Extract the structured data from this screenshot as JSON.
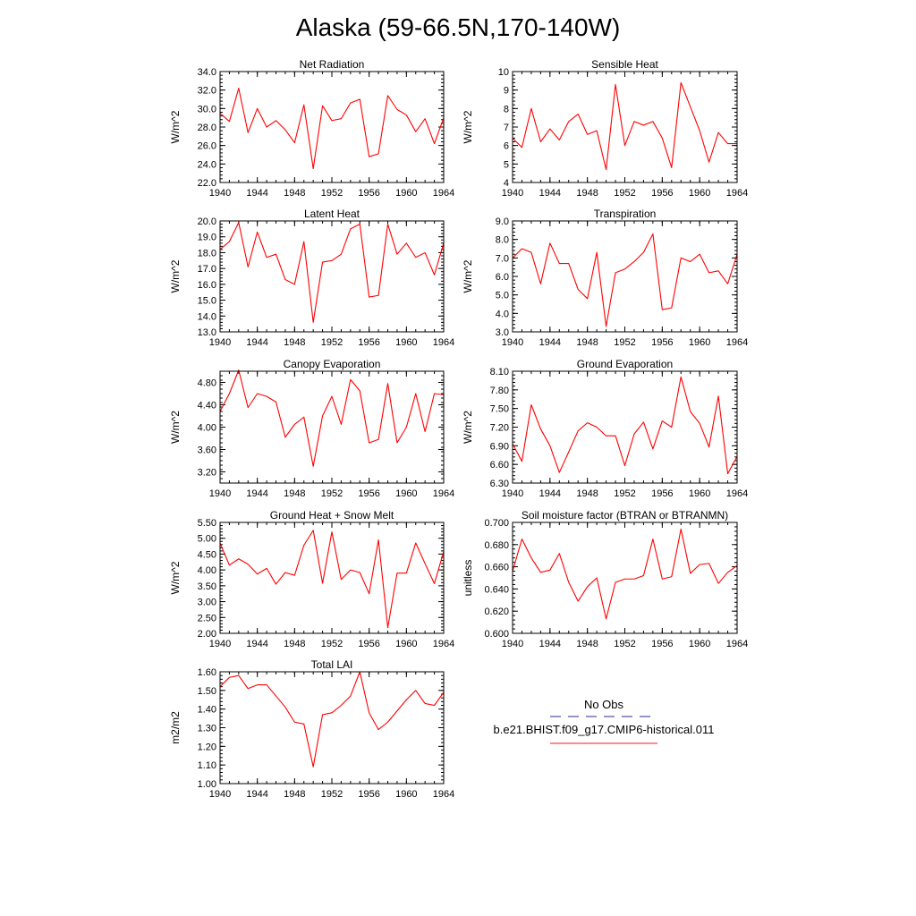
{
  "figure": {
    "title": "Alaska (59-66.5N,170-140W)"
  },
  "legend": {
    "entries": [
      {
        "label": "No Obs",
        "color": "#5555aa",
        "style": "dashed"
      },
      {
        "label": "b.e21.BHIST.f09_g17.CMIP6-historical.011",
        "color": "#ff4444",
        "style": "solid"
      }
    ]
  },
  "chart_data": [
    {
      "type": "line",
      "title": "Net Radiation",
      "ylabel": "W/m^2",
      "xlim": [
        1940,
        1964
      ],
      "ylim": [
        22,
        34
      ],
      "yticks": [
        22.0,
        24.0,
        26.0,
        28.0,
        30.0,
        32.0,
        34.0
      ],
      "ytick_decimals": 1,
      "xticks": [
        1940,
        1944,
        1948,
        1952,
        1956,
        1960,
        1964
      ],
      "x": [
        1940,
        1941,
        1942,
        1943,
        1944,
        1945,
        1946,
        1947,
        1948,
        1949,
        1950,
        1951,
        1952,
        1953,
        1954,
        1955,
        1956,
        1957,
        1958,
        1959,
        1960,
        1961,
        1962,
        1963,
        1964
      ],
      "series": [
        {
          "color": "#ff0000",
          "values": [
            29.5,
            28.6,
            32.2,
            27.4,
            30.0,
            28.0,
            28.7,
            27.7,
            26.3,
            30.4,
            23.5,
            30.3,
            28.7,
            28.9,
            30.6,
            31.0,
            24.8,
            25.1,
            31.4,
            29.9,
            29.3,
            27.5,
            28.9,
            26.2,
            29.0
          ]
        }
      ]
    },
    {
      "type": "line",
      "title": "Sensible Heat",
      "ylabel": "W/m^2",
      "xlim": [
        1940,
        1964
      ],
      "ylim": [
        4,
        10
      ],
      "yticks": [
        4,
        5,
        6,
        7,
        8,
        9,
        10
      ],
      "ytick_decimals": 0,
      "xticks": [
        1940,
        1944,
        1948,
        1952,
        1956,
        1960,
        1964
      ],
      "x": [
        1940,
        1941,
        1942,
        1943,
        1944,
        1945,
        1946,
        1947,
        1948,
        1949,
        1950,
        1951,
        1952,
        1953,
        1954,
        1955,
        1956,
        1957,
        1958,
        1959,
        1960,
        1961,
        1962,
        1963,
        1964
      ],
      "series": [
        {
          "color": "#ff0000",
          "values": [
            6.4,
            5.9,
            8.0,
            6.2,
            6.9,
            6.3,
            7.3,
            7.7,
            6.6,
            6.8,
            4.7,
            9.3,
            6.0,
            7.3,
            7.1,
            7.3,
            6.4,
            4.8,
            9.4,
            8.1,
            6.8,
            5.1,
            6.7,
            6.1,
            6.1
          ]
        }
      ]
    },
    {
      "type": "line",
      "title": "Latent Heat",
      "ylabel": "W/m^2",
      "xlim": [
        1940,
        1964
      ],
      "ylim": [
        13,
        20
      ],
      "yticks": [
        13.0,
        14.0,
        15.0,
        16.0,
        17.0,
        18.0,
        19.0,
        20.0
      ],
      "ytick_decimals": 1,
      "xticks": [
        1940,
        1944,
        1948,
        1952,
        1956,
        1960,
        1964
      ],
      "x": [
        1940,
        1941,
        1942,
        1943,
        1944,
        1945,
        1946,
        1947,
        1948,
        1949,
        1950,
        1951,
        1952,
        1953,
        1954,
        1955,
        1956,
        1957,
        1958,
        1959,
        1960,
        1961,
        1962,
        1963,
        1964
      ],
      "series": [
        {
          "color": "#ff0000",
          "values": [
            18.2,
            18.7,
            19.9,
            17.1,
            19.3,
            17.7,
            17.9,
            16.3,
            16.0,
            18.7,
            13.6,
            17.4,
            17.5,
            17.9,
            19.5,
            19.8,
            15.2,
            15.3,
            19.8,
            17.9,
            18.6,
            17.7,
            18.0,
            16.6,
            18.6
          ]
        }
      ]
    },
    {
      "type": "line",
      "title": "Transpiration",
      "ylabel": "W/m^2",
      "xlim": [
        1940,
        1964
      ],
      "ylim": [
        3,
        9
      ],
      "yticks": [
        3.0,
        4.0,
        5.0,
        6.0,
        7.0,
        8.0,
        9.0
      ],
      "ytick_decimals": 1,
      "xticks": [
        1940,
        1944,
        1948,
        1952,
        1956,
        1960,
        1964
      ],
      "x": [
        1940,
        1941,
        1942,
        1943,
        1944,
        1945,
        1946,
        1947,
        1948,
        1949,
        1950,
        1951,
        1952,
        1953,
        1954,
        1955,
        1956,
        1957,
        1958,
        1959,
        1960,
        1961,
        1962,
        1963,
        1964
      ],
      "series": [
        {
          "color": "#ff0000",
          "values": [
            7.0,
            7.5,
            7.3,
            5.6,
            7.8,
            6.7,
            6.7,
            5.3,
            4.8,
            7.3,
            3.3,
            6.2,
            6.4,
            6.8,
            7.3,
            8.3,
            4.2,
            4.3,
            7.0,
            6.8,
            7.2,
            6.2,
            6.3,
            5.6,
            7.2
          ]
        }
      ]
    },
    {
      "type": "line",
      "title": "Canopy Evaporation",
      "ylabel": "W/m^2",
      "xlim": [
        1940,
        1964
      ],
      "ylim": [
        3.0,
        5.0
      ],
      "yticks": [
        3.2,
        3.6,
        4.0,
        4.4,
        4.8
      ],
      "ytick_decimals": 2,
      "xticks": [
        1940,
        1944,
        1948,
        1952,
        1956,
        1960,
        1964
      ],
      "x": [
        1940,
        1941,
        1942,
        1943,
        1944,
        1945,
        1946,
        1947,
        1948,
        1949,
        1950,
        1951,
        1952,
        1953,
        1954,
        1955,
        1956,
        1957,
        1958,
        1959,
        1960,
        1961,
        1962,
        1963,
        1964
      ],
      "series": [
        {
          "color": "#ff0000",
          "values": [
            4.28,
            4.6,
            5.02,
            4.35,
            4.6,
            4.55,
            4.45,
            3.82,
            4.05,
            4.18,
            3.3,
            4.2,
            4.55,
            4.05,
            4.85,
            4.65,
            3.72,
            3.78,
            4.78,
            3.72,
            4.0,
            4.6,
            3.92,
            4.6,
            4.58
          ]
        }
      ]
    },
    {
      "type": "line",
      "title": "Ground Evaporation",
      "ylabel": "W/m^2",
      "xlim": [
        1940,
        1964
      ],
      "ylim": [
        6.3,
        8.1
      ],
      "yticks": [
        6.3,
        6.6,
        6.9,
        7.2,
        7.5,
        7.8,
        8.1
      ],
      "ytick_decimals": 2,
      "xticks": [
        1940,
        1944,
        1948,
        1952,
        1956,
        1960,
        1964
      ],
      "x": [
        1940,
        1941,
        1942,
        1943,
        1944,
        1945,
        1946,
        1947,
        1948,
        1949,
        1950,
        1951,
        1952,
        1953,
        1954,
        1955,
        1956,
        1957,
        1958,
        1959,
        1960,
        1961,
        1962,
        1963,
        1964
      ],
      "series": [
        {
          "color": "#ff0000",
          "values": [
            6.93,
            6.65,
            7.56,
            7.17,
            6.9,
            6.47,
            6.8,
            7.14,
            7.27,
            7.2,
            7.06,
            7.06,
            6.58,
            7.09,
            7.28,
            6.85,
            7.3,
            7.2,
            8.01,
            7.45,
            7.26,
            6.88,
            7.7,
            6.45,
            6.73
          ]
        }
      ]
    },
    {
      "type": "line",
      "title": "Ground Heat + Snow Melt",
      "ylabel": "W/m^2",
      "xlim": [
        1940,
        1964
      ],
      "ylim": [
        2.0,
        5.5
      ],
      "yticks": [
        2.0,
        2.5,
        3.0,
        3.5,
        4.0,
        4.5,
        5.0,
        5.5
      ],
      "ytick_decimals": 2,
      "xticks": [
        1940,
        1944,
        1948,
        1952,
        1956,
        1960,
        1964
      ],
      "x": [
        1940,
        1941,
        1942,
        1943,
        1944,
        1945,
        1946,
        1947,
        1948,
        1949,
        1950,
        1951,
        1952,
        1953,
        1954,
        1955,
        1956,
        1957,
        1958,
        1959,
        1960,
        1961,
        1962,
        1963,
        1964
      ],
      "series": [
        {
          "color": "#ff0000",
          "values": [
            4.85,
            4.15,
            4.35,
            4.18,
            3.87,
            4.05,
            3.55,
            3.92,
            3.83,
            4.78,
            5.25,
            3.58,
            5.2,
            3.7,
            4.0,
            3.92,
            3.25,
            4.95,
            2.18,
            3.9,
            3.9,
            4.85,
            4.2,
            3.57,
            4.58
          ]
        }
      ]
    },
    {
      "type": "line",
      "title": "Soil moisture factor (BTRAN or BTRANMN)",
      "ylabel": "unitless",
      "xlim": [
        1940,
        1964
      ],
      "ylim": [
        0.6,
        0.7
      ],
      "yticks": [
        0.6,
        0.62,
        0.64,
        0.66,
        0.68,
        0.7
      ],
      "ytick_decimals": 3,
      "xticks": [
        1940,
        1944,
        1948,
        1952,
        1956,
        1960,
        1964
      ],
      "x": [
        1940,
        1941,
        1942,
        1943,
        1944,
        1945,
        1946,
        1947,
        1948,
        1949,
        1950,
        1951,
        1952,
        1953,
        1954,
        1955,
        1956,
        1957,
        1958,
        1959,
        1960,
        1961,
        1962,
        1963,
        1964
      ],
      "series": [
        {
          "color": "#ff0000",
          "values": [
            0.656,
            0.685,
            0.668,
            0.655,
            0.657,
            0.672,
            0.646,
            0.629,
            0.642,
            0.65,
            0.613,
            0.646,
            0.649,
            0.649,
            0.652,
            0.685,
            0.649,
            0.651,
            0.694,
            0.654,
            0.662,
            0.663,
            0.645,
            0.655,
            0.661
          ]
        }
      ]
    },
    {
      "type": "line",
      "title": "Total LAI",
      "ylabel": "m2/m2",
      "xlim": [
        1940,
        1964
      ],
      "ylim": [
        1.0,
        1.6
      ],
      "yticks": [
        1.0,
        1.1,
        1.2,
        1.3,
        1.4,
        1.5,
        1.6
      ],
      "ytick_decimals": 2,
      "xticks": [
        1940,
        1944,
        1948,
        1952,
        1956,
        1960,
        1964
      ],
      "x": [
        1940,
        1941,
        1942,
        1943,
        1944,
        1945,
        1946,
        1947,
        1948,
        1949,
        1950,
        1951,
        1952,
        1953,
        1954,
        1955,
        1956,
        1957,
        1958,
        1959,
        1960,
        1961,
        1962,
        1963,
        1964
      ],
      "series": [
        {
          "color": "#ff0000",
          "values": [
            1.52,
            1.57,
            1.58,
            1.51,
            1.53,
            1.53,
            1.47,
            1.41,
            1.33,
            1.32,
            1.09,
            1.37,
            1.38,
            1.42,
            1.47,
            1.6,
            1.38,
            1.29,
            1.33,
            1.39,
            1.45,
            1.5,
            1.43,
            1.42,
            1.49
          ]
        }
      ]
    }
  ]
}
